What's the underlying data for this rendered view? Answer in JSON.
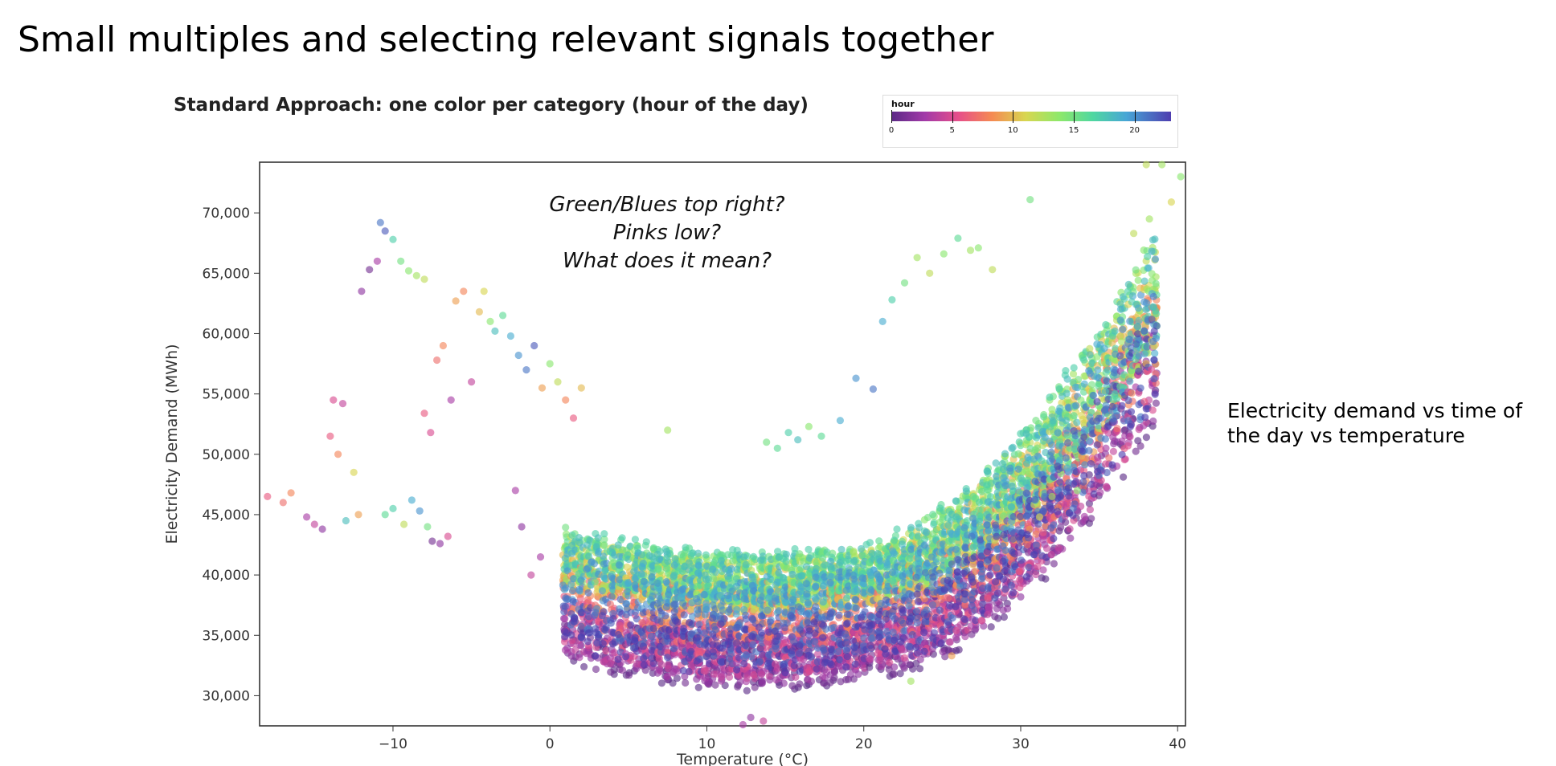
{
  "slide": {
    "title": "Small multiples and selecting relevant signals together",
    "side_note_line1": "Electricity demand vs time of",
    "side_note_line2": "the day vs temperature"
  },
  "chart_data": {
    "type": "scatter",
    "title": "Standard Approach: one color per category (hour of the day)",
    "xlabel": "Temperature (°C)",
    "ylabel": "Electricity Demand (MWh)",
    "xlim": [
      -18.5,
      40.5
    ],
    "ylim": [
      27500,
      74200
    ],
    "x_ticks": [
      -10,
      0,
      10,
      20,
      30,
      40
    ],
    "x_tick_labels": [
      "−10",
      "0",
      "10",
      "20",
      "30",
      "40"
    ],
    "y_ticks": [
      30000,
      35000,
      40000,
      45000,
      50000,
      55000,
      60000,
      65000,
      70000
    ],
    "y_tick_labels": [
      "30,000",
      "35,000",
      "40,000",
      "45,000",
      "50,000",
      "55,000",
      "60,000",
      "65,000",
      "70,000"
    ],
    "grid": false,
    "legend": {
      "title": "hour",
      "placement": "top-right",
      "range": [
        0,
        23
      ],
      "ticks": [
        0,
        5,
        10,
        15,
        20
      ],
      "tick_labels": [
        "0",
        "5",
        "10",
        "15",
        "20"
      ]
    },
    "annotation": [
      "Green/Blues top right?",
      "Pinks low?",
      "What does it mean?"
    ],
    "series": [
      {
        "color_by": "hour",
        "points": [
          {
            "x": -18,
            "y": 46500,
            "hour": 6
          },
          {
            "x": -17,
            "y": 46000,
            "hour": 7
          },
          {
            "x": -16.5,
            "y": 46800,
            "hour": 8
          },
          {
            "x": -15.5,
            "y": 44800,
            "hour": 3
          },
          {
            "x": -15,
            "y": 44200,
            "hour": 4
          },
          {
            "x": -14.5,
            "y": 43800,
            "hour": 2
          },
          {
            "x": -14,
            "y": 51500,
            "hour": 6
          },
          {
            "x": -13.8,
            "y": 54500,
            "hour": 5
          },
          {
            "x": -13.5,
            "y": 50000,
            "hour": 8
          },
          {
            "x": -13.2,
            "y": 54200,
            "hour": 4
          },
          {
            "x": -13,
            "y": 44500,
            "hour": 18
          },
          {
            "x": -12.5,
            "y": 48500,
            "hour": 11
          },
          {
            "x": -12.2,
            "y": 45000,
            "hour": 9
          },
          {
            "x": -12,
            "y": 63500,
            "hour": 2
          },
          {
            "x": -11.5,
            "y": 65300,
            "hour": 1
          },
          {
            "x": -11,
            "y": 66000,
            "hour": 3
          },
          {
            "x": -10.8,
            "y": 69200,
            "hour": 21
          },
          {
            "x": -10.5,
            "y": 68500,
            "hour": 22
          },
          {
            "x": -10,
            "y": 67800,
            "hour": 17
          },
          {
            "x": -9.5,
            "y": 66000,
            "hour": 15
          },
          {
            "x": -9,
            "y": 65200,
            "hour": 14
          },
          {
            "x": -8.5,
            "y": 64800,
            "hour": 13
          },
          {
            "x": -8,
            "y": 64500,
            "hour": 12
          },
          {
            "x": -10.5,
            "y": 45000,
            "hour": 16
          },
          {
            "x": -10,
            "y": 45500,
            "hour": 17
          },
          {
            "x": -9.3,
            "y": 44200,
            "hour": 12
          },
          {
            "x": -8.8,
            "y": 46200,
            "hour": 19
          },
          {
            "x": -8.3,
            "y": 45300,
            "hour": 20
          },
          {
            "x": -7.8,
            "y": 44000,
            "hour": 15
          },
          {
            "x": -7.5,
            "y": 42800,
            "hour": 1
          },
          {
            "x": -7,
            "y": 42600,
            "hour": 2
          },
          {
            "x": -6.5,
            "y": 43200,
            "hour": 5
          },
          {
            "x": -8,
            "y": 53400,
            "hour": 6
          },
          {
            "x": -7.6,
            "y": 51800,
            "hour": 5
          },
          {
            "x": -7.2,
            "y": 57800,
            "hour": 7
          },
          {
            "x": -6.8,
            "y": 59000,
            "hour": 8
          },
          {
            "x": -6.3,
            "y": 54500,
            "hour": 3
          },
          {
            "x": -6,
            "y": 62700,
            "hour": 9
          },
          {
            "x": -5.5,
            "y": 63500,
            "hour": 8
          },
          {
            "x": -5,
            "y": 56000,
            "hour": 4
          },
          {
            "x": -4.5,
            "y": 61800,
            "hour": 10
          },
          {
            "x": -4.2,
            "y": 63500,
            "hour": 11
          },
          {
            "x": -3.8,
            "y": 61000,
            "hour": 14
          },
          {
            "x": -3.5,
            "y": 60200,
            "hour": 18
          },
          {
            "x": -3,
            "y": 61500,
            "hour": 16
          },
          {
            "x": -2.5,
            "y": 59800,
            "hour": 19
          },
          {
            "x": -2,
            "y": 58200,
            "hour": 20
          },
          {
            "x": -1.5,
            "y": 57000,
            "hour": 21
          },
          {
            "x": -1,
            "y": 59000,
            "hour": 22
          },
          {
            "x": -0.5,
            "y": 55500,
            "hour": 9
          },
          {
            "x": 0,
            "y": 57500,
            "hour": 14
          },
          {
            "x": 0.5,
            "y": 56000,
            "hour": 12
          },
          {
            "x": 1,
            "y": 54500,
            "hour": 8
          },
          {
            "x": 1.5,
            "y": 53000,
            "hour": 6
          },
          {
            "x": 2,
            "y": 55500,
            "hour": 10
          },
          {
            "x": -2.2,
            "y": 47000,
            "hour": 3
          },
          {
            "x": -1.8,
            "y": 44000,
            "hour": 2
          },
          {
            "x": -1.2,
            "y": 40000,
            "hour": 4
          },
          {
            "x": -0.6,
            "y": 41500,
            "hour": 3
          },
          {
            "x": 7.5,
            "y": 52000,
            "hour": 13
          },
          {
            "x": 13.8,
            "y": 51000,
            "hour": 15
          },
          {
            "x": 14.5,
            "y": 50500,
            "hour": 16
          },
          {
            "x": 15.2,
            "y": 51800,
            "hour": 17
          },
          {
            "x": 15.8,
            "y": 51200,
            "hour": 18
          },
          {
            "x": 16.5,
            "y": 52300,
            "hour": 14
          },
          {
            "x": 17.3,
            "y": 51500,
            "hour": 16
          },
          {
            "x": 18.5,
            "y": 52800,
            "hour": 19
          },
          {
            "x": 19.5,
            "y": 56300,
            "hour": 20
          },
          {
            "x": 20.6,
            "y": 55400,
            "hour": 21
          },
          {
            "x": 21.2,
            "y": 61000,
            "hour": 19
          },
          {
            "x": 21.8,
            "y": 62800,
            "hour": 17
          },
          {
            "x": 22.6,
            "y": 64200,
            "hour": 15
          },
          {
            "x": 23.4,
            "y": 66300,
            "hour": 13
          },
          {
            "x": 24.2,
            "y": 65000,
            "hour": 12
          },
          {
            "x": 25.1,
            "y": 66600,
            "hour": 14
          },
          {
            "x": 26,
            "y": 67900,
            "hour": 16
          },
          {
            "x": 26.8,
            "y": 66900,
            "hour": 13
          },
          {
            "x": 27.3,
            "y": 67100,
            "hour": 14
          },
          {
            "x": 28.2,
            "y": 65300,
            "hour": 12
          },
          {
            "x": 30.6,
            "y": 71100,
            "hour": 15
          },
          {
            "x": 38,
            "y": 74000,
            "hour": 12
          },
          {
            "x": 39,
            "y": 74000,
            "hour": 13
          },
          {
            "x": 40.2,
            "y": 73000,
            "hour": 14
          },
          {
            "x": 39.6,
            "y": 70900,
            "hour": 11
          },
          {
            "x": 38.2,
            "y": 69500,
            "hour": 13
          },
          {
            "x": 37.2,
            "y": 68300,
            "hour": 12
          },
          {
            "x": 35.4,
            "y": 55200,
            "hour": 18
          },
          {
            "x": 36,
            "y": 55000,
            "hour": 17
          },
          {
            "x": 33.6,
            "y": 47000,
            "hour": 14
          },
          {
            "x": 32,
            "y": 46500,
            "hour": 12
          },
          {
            "x": 31.2,
            "y": 44800,
            "hour": 11
          },
          {
            "x": 25.6,
            "y": 33300,
            "hour": 9
          },
          {
            "x": 23,
            "y": 31200,
            "hour": 13
          },
          {
            "x": 12.3,
            "y": 27600,
            "hour": 3
          },
          {
            "x": 13.6,
            "y": 27900,
            "hour": 4
          },
          {
            "x": 12.8,
            "y": 28200,
            "hour": 2
          }
        ]
      }
    ]
  }
}
